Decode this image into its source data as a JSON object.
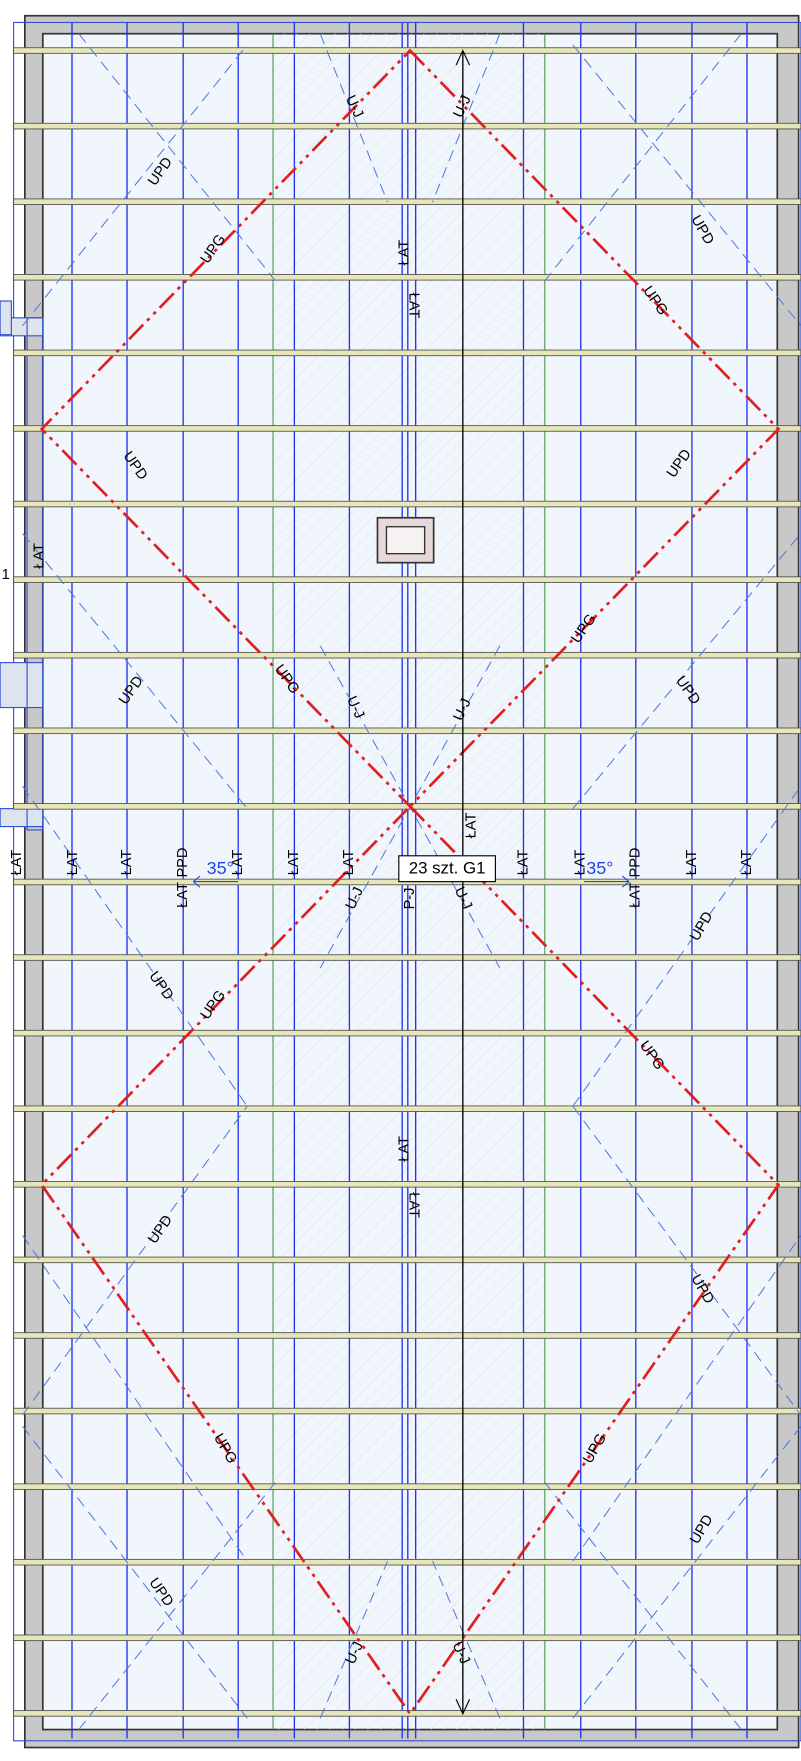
{
  "labels": [
    "UPD",
    "UPG",
    "U-J",
    "U-J",
    "ŁAT",
    "ŁAT",
    "UPD",
    "UPG",
    "ŁAT",
    "UPD",
    "UPD",
    "UPG",
    "UPG",
    "UPD",
    "UPD",
    "U-J",
    "U-J",
    "ŁAT",
    "ŁAT",
    "ŁAT",
    "ŁAT",
    "PPD",
    "ŁAT",
    "ŁAT",
    "ŁAT",
    "ŁAT",
    "ŁAT",
    "ŁAT",
    "PPD",
    "ŁAT",
    "ŁAT",
    "ŁAT",
    "U-J",
    "P-J",
    "U-J",
    "UPD",
    "UPD",
    "UPG",
    "UPG",
    "ŁAT",
    "ŁAT",
    "UPD",
    "UPD",
    "UPG",
    "UPG",
    "UPD",
    "UPD",
    "U-J",
    "U-J",
    "1"
  ],
  "angle_labels": [
    "35°",
    "35°"
  ],
  "count_label": "23 szt. G1"
}
